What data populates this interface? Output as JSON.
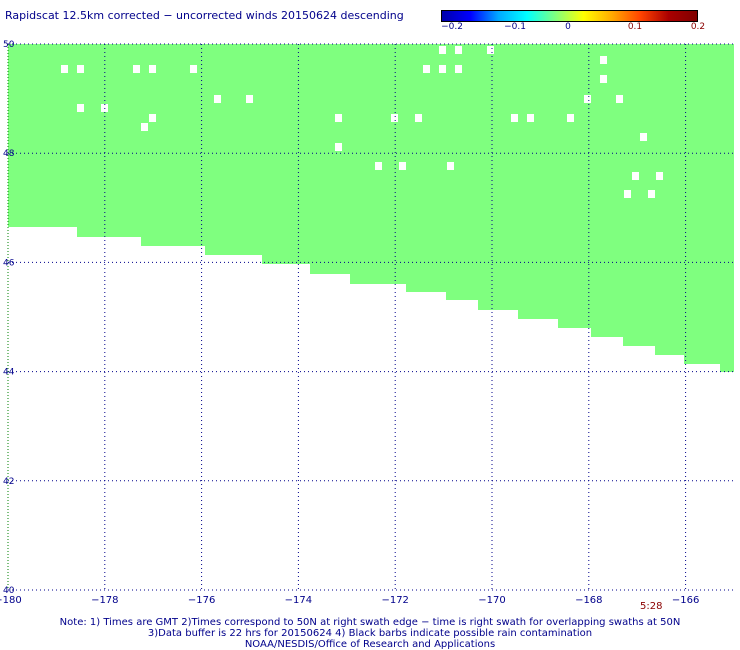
{
  "title": "Rapidscat 12.5km corrected − uncorrected winds 20150624 descending",
  "colorbar": {
    "ticks": [
      "−0.2",
      "−0.1",
      "0",
      "0.1",
      "0.2"
    ],
    "colors": [
      "#0000aa",
      "#0000ff",
      "#00aaff",
      "#00ffff",
      "#7fff7f",
      "#ffff00",
      "#ffaa00",
      "#ff4400",
      "#aa0000",
      "#800000"
    ]
  },
  "map": {
    "lon_range": [
      -180,
      -165
    ],
    "lat_range": [
      40,
      50
    ],
    "x_ticks": [
      "−180",
      "−178",
      "−176",
      "−174",
      "−172",
      "−170",
      "−168",
      "−166"
    ],
    "y_ticks": [
      "40",
      "42",
      "44",
      "46",
      "48",
      "50"
    ],
    "fill_color": "#7fff7f",
    "grid_color": "#00008b",
    "axis_color": "#008000"
  },
  "timestamp": "5:28",
  "notes": [
    "Note: 1) Times are GMT 2)Times correspond to 50N at right swath edge − time is right swath for overlapping swaths at 50N",
    "3)Data buffer is 22 hrs for 20150624 4) Black barbs indicate possible rain contamination",
    "NOAA/NESDIS/Office of Research and Applications"
  ]
}
